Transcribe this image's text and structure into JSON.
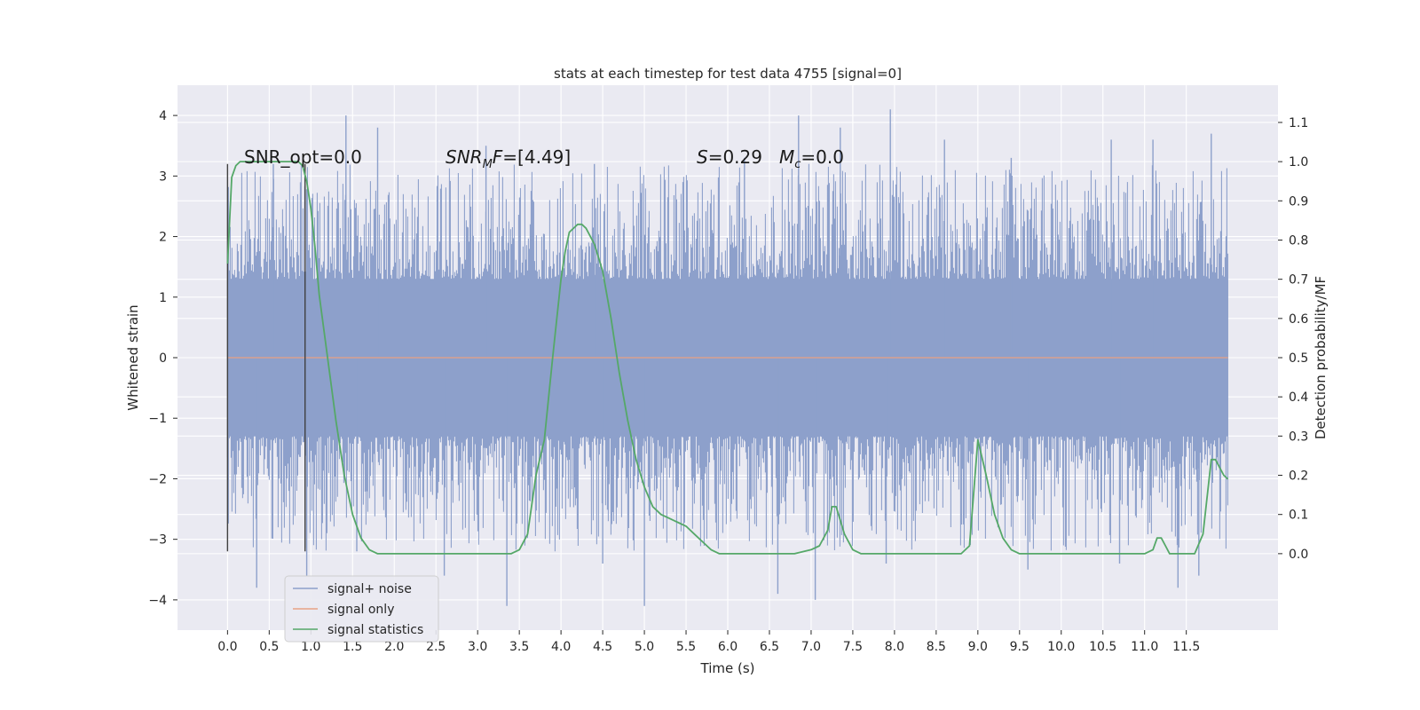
{
  "chart_data": {
    "type": "line",
    "title": "stats at each timestep for test data 4755 [signal=0]",
    "xlabel": "Time (s)",
    "ylabel": "Whitened strain",
    "y2label": "Detection probability/MF",
    "xlim": [
      -0.6,
      12.6
    ],
    "ylim": [
      -4.5,
      4.5
    ],
    "y2lim": [
      -0.195,
      1.195
    ],
    "x_ticks": [
      0.0,
      0.5,
      1.0,
      1.5,
      2.0,
      2.5,
      3.0,
      3.5,
      4.0,
      4.5,
      5.0,
      5.5,
      6.0,
      6.5,
      7.0,
      7.5,
      8.0,
      8.5,
      9.0,
      9.5,
      10.0,
      10.5,
      11.0,
      11.5
    ],
    "x_tick_labels": [
      "0.0",
      "0.5",
      "1.0",
      "1.5",
      "2.0",
      "2.5",
      "3.0",
      "3.5",
      "4.0",
      "4.5",
      "5.0",
      "5.5",
      "6.0",
      "6.5",
      "7.0",
      "7.5",
      "8.0",
      "8.5",
      "9.0",
      "9.5",
      "10.0",
      "10.5",
      "11.0",
      "11.5"
    ],
    "y_ticks": [
      -4,
      -3,
      -2,
      -1,
      0,
      1,
      2,
      3,
      4
    ],
    "y_tick_labels": [
      "−4",
      "−3",
      "−2",
      "−1",
      "0",
      "1",
      "2",
      "3",
      "4"
    ],
    "y2_ticks": [
      0.0,
      0.1,
      0.2,
      0.3,
      0.4,
      0.5,
      0.6,
      0.7,
      0.8,
      0.9,
      1.0,
      1.1
    ],
    "y2_tick_labels": [
      "0.0",
      "0.1",
      "0.2",
      "0.3",
      "0.4",
      "0.5",
      "0.6",
      "0.7",
      "0.8",
      "0.9",
      "1.0",
      "1.1"
    ],
    "grid": true,
    "legend_position": "bottom-left",
    "series": [
      {
        "name": "signal+ noise",
        "axis": "left",
        "color": "#8da0cb",
        "x_range": [
          0.0,
          12.0
        ],
        "envelope_typical": [
          -1.9,
          1.9
        ],
        "spikes_up": [
          [
            0.55,
            3.2
          ],
          [
            1.42,
            4.0
          ],
          [
            1.8,
            3.8
          ],
          [
            3.1,
            3.5
          ],
          [
            4.4,
            3.2
          ],
          [
            6.2,
            3.3
          ],
          [
            6.85,
            4.0
          ],
          [
            7.35,
            3.8
          ],
          [
            7.95,
            4.1
          ],
          [
            8.6,
            3.6
          ],
          [
            9.4,
            3.3
          ],
          [
            10.6,
            3.6
          ],
          [
            11.1,
            3.6
          ],
          [
            11.8,
            3.7
          ]
        ],
        "spikes_down": [
          [
            0.35,
            -3.8
          ],
          [
            0.95,
            -3.6
          ],
          [
            1.55,
            -3.2
          ],
          [
            2.6,
            -3.6
          ],
          [
            3.35,
            -4.1
          ],
          [
            4.5,
            -3.4
          ],
          [
            5.0,
            -4.1
          ],
          [
            6.6,
            -3.9
          ],
          [
            7.05,
            -4.0
          ],
          [
            7.9,
            -3.4
          ],
          [
            9.6,
            -3.5
          ],
          [
            10.7,
            -3.4
          ],
          [
            11.4,
            -3.8
          ],
          [
            11.65,
            -3.6
          ]
        ]
      },
      {
        "name": "signal only",
        "axis": "left",
        "color": "#e8a184",
        "x": [
          0.0,
          12.0
        ],
        "y": [
          0.0,
          0.0
        ]
      },
      {
        "name": "signal statistics",
        "axis": "right",
        "color": "#55a868",
        "x": [
          0.0,
          0.05,
          0.1,
          0.15,
          0.2,
          0.3,
          0.4,
          0.5,
          0.6,
          0.7,
          0.8,
          0.85,
          0.9,
          0.95,
          1.0,
          1.05,
          1.1,
          1.2,
          1.3,
          1.4,
          1.5,
          1.6,
          1.7,
          1.8,
          1.9,
          2.0,
          2.5,
          3.0,
          3.2,
          3.4,
          3.5,
          3.6,
          3.7,
          3.8,
          3.9,
          4.0,
          4.05,
          4.1,
          4.2,
          4.25,
          4.3,
          4.4,
          4.5,
          4.6,
          4.7,
          4.8,
          4.9,
          5.0,
          5.1,
          5.2,
          5.3,
          5.4,
          5.5,
          5.6,
          5.7,
          5.8,
          5.9,
          6.0,
          6.5,
          6.8,
          7.0,
          7.1,
          7.2,
          7.25,
          7.3,
          7.4,
          7.5,
          7.6,
          7.8,
          8.0,
          8.5,
          8.8,
          8.9,
          9.0,
          9.1,
          9.2,
          9.3,
          9.4,
          9.5,
          9.6,
          9.8,
          10.0,
          10.5,
          10.7,
          11.0,
          11.1,
          11.15,
          11.2,
          11.25,
          11.3,
          11.4,
          11.5,
          11.6,
          11.7,
          11.8,
          11.85,
          11.9,
          11.95,
          12.0
        ],
        "y": [
          0.74,
          0.96,
          0.99,
          1.0,
          1.0,
          1.0,
          1.0,
          1.0,
          1.0,
          1.0,
          1.0,
          1.0,
          0.99,
          0.95,
          0.88,
          0.78,
          0.66,
          0.5,
          0.34,
          0.2,
          0.1,
          0.04,
          0.01,
          0.0,
          0.0,
          0.0,
          0.0,
          0.0,
          0.0,
          0.0,
          0.01,
          0.05,
          0.2,
          0.29,
          0.5,
          0.7,
          0.77,
          0.82,
          0.84,
          0.84,
          0.83,
          0.79,
          0.72,
          0.6,
          0.46,
          0.34,
          0.24,
          0.17,
          0.12,
          0.1,
          0.09,
          0.08,
          0.07,
          0.05,
          0.03,
          0.01,
          0.0,
          0.0,
          0.0,
          0.0,
          0.01,
          0.02,
          0.06,
          0.12,
          0.12,
          0.05,
          0.01,
          0.0,
          0.0,
          0.0,
          0.0,
          0.0,
          0.02,
          0.29,
          0.2,
          0.1,
          0.04,
          0.01,
          0.0,
          0.0,
          0.0,
          0.0,
          0.0,
          0.0,
          0.0,
          0.01,
          0.04,
          0.04,
          0.02,
          0.0,
          0.0,
          0.0,
          0.0,
          0.05,
          0.24,
          0.24,
          0.22,
          0.2,
          0.19
        ]
      }
    ],
    "vlines": [
      {
        "x": 0.0,
        "ymin": -3.2,
        "ymax": 3.2,
        "color": "#404040"
      },
      {
        "x": 0.93,
        "ymin": -3.2,
        "ymax": 3.2,
        "color": "#404040"
      }
    ],
    "annotations": {
      "snr_opt": "SNR_opt=0.0",
      "snr_mf_prefix": "SNR",
      "snr_mf_sub": "M",
      "snr_mf_mid": "F",
      "snr_mf_value": "=[4.49]",
      "s_var": "S",
      "s_value": "=0.29",
      "mc_var": "M",
      "mc_sub": "c",
      "mc_value": "=0.0"
    }
  }
}
